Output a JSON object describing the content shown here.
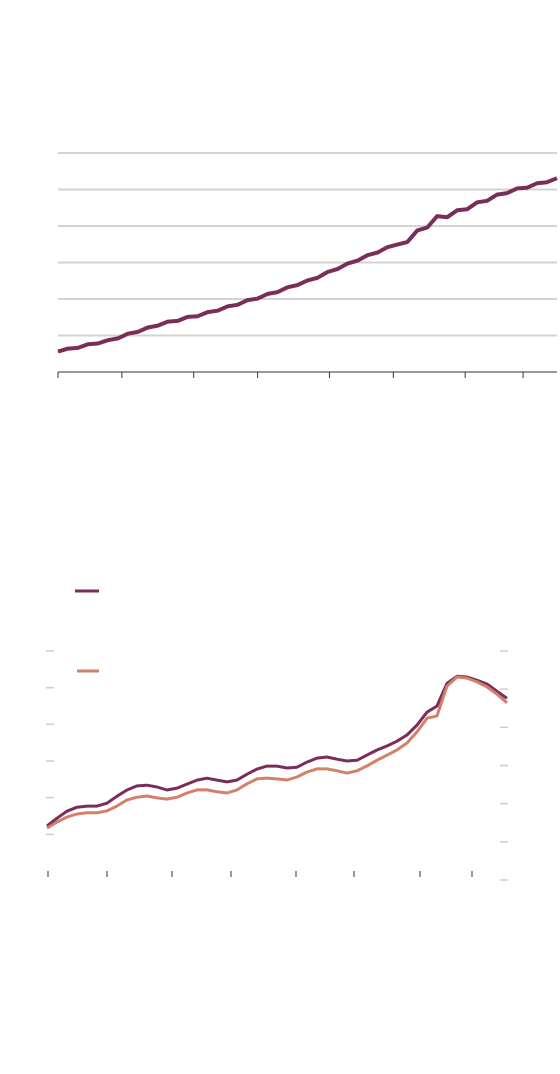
{
  "chart_data": [
    {
      "type": "line",
      "x": [
        0,
        10,
        20,
        30,
        40,
        50,
        60,
        70,
        80,
        90,
        100,
        110,
        120,
        130,
        140,
        150,
        160,
        170,
        180,
        190,
        200,
        210,
        220,
        230,
        240,
        250,
        260,
        270,
        280,
        290,
        300,
        310,
        320,
        330,
        340,
        350,
        360,
        370,
        380,
        390,
        400,
        410,
        420,
        430,
        440,
        450,
        460,
        470,
        480,
        490,
        500
      ],
      "series": [
        {
          "color": "#7b2d5a",
          "values": [
            0.56,
            0.64,
            0.66,
            0.76,
            0.78,
            0.87,
            0.92,
            1.05,
            1.1,
            1.22,
            1.27,
            1.38,
            1.4,
            1.51,
            1.53,
            1.64,
            1.68,
            1.8,
            1.84,
            1.97,
            2.01,
            2.14,
            2.19,
            2.32,
            2.38,
            2.51,
            2.58,
            2.74,
            2.82,
            2.97,
            3.05,
            3.2,
            3.27,
            3.42,
            3.49,
            3.56,
            3.88,
            3.96,
            4.27,
            4.24,
            4.43,
            4.46,
            4.65,
            4.69,
            4.86,
            4.9,
            5.03,
            5.05,
            5.17,
            5.2,
            5.31
          ]
        }
      ],
      "xlim": [
        0,
        500
      ],
      "xticks": [
        0,
        64,
        136,
        200,
        272,
        336,
        408,
        466
      ],
      "ylim": [
        0,
        6
      ],
      "yticks": [
        1,
        2,
        3,
        4,
        5,
        6
      ],
      "grid": true
    },
    {
      "type": "line",
      "x": [
        0,
        1,
        2,
        3,
        4,
        5,
        6,
        7,
        8,
        9,
        10,
        11,
        12,
        13,
        14,
        15,
        16,
        17,
        18,
        19,
        20,
        21,
        22,
        23,
        24,
        25,
        26,
        27,
        28,
        29,
        30,
        31,
        32,
        33,
        34,
        35,
        36,
        37,
        38,
        39,
        40,
        41,
        42,
        43,
        44,
        45,
        46
      ],
      "series": [
        {
          "color": "#7b2d5a",
          "axis": "y",
          "values": [
            1.23,
            1.44,
            1.63,
            1.74,
            1.77,
            1.77,
            1.85,
            2.04,
            2.21,
            2.32,
            2.34,
            2.29,
            2.21,
            2.26,
            2.37,
            2.48,
            2.53,
            2.48,
            2.43,
            2.48,
            2.64,
            2.78,
            2.86,
            2.86,
            2.81,
            2.83,
            2.97,
            3.08,
            3.11,
            3.05,
            3.0,
            3.02,
            3.16,
            3.3,
            3.41,
            3.54,
            3.71,
            3.98,
            4.33,
            4.5,
            5.12,
            5.31,
            5.29,
            5.2,
            5.1,
            4.9,
            4.71
          ]
        },
        {
          "color": "#d3806a",
          "axis": "y2",
          "values": [
            1.36,
            1.52,
            1.65,
            1.73,
            1.76,
            1.76,
            1.81,
            1.94,
            2.1,
            2.17,
            2.2,
            2.15,
            2.12,
            2.17,
            2.28,
            2.36,
            2.36,
            2.31,
            2.28,
            2.36,
            2.52,
            2.65,
            2.67,
            2.65,
            2.62,
            2.7,
            2.83,
            2.91,
            2.91,
            2.86,
            2.8,
            2.86,
            2.99,
            3.14,
            3.27,
            3.41,
            3.59,
            3.88,
            4.24,
            4.3,
            5.08,
            5.32,
            5.29,
            5.19,
            5.06,
            4.87,
            4.64
          ]
        }
      ],
      "xlim": [
        0,
        46
      ],
      "xticks": [
        0.1,
        6,
        12.5,
        18.4,
        24.9,
        30.7,
        37.3,
        42.5
      ],
      "ylim": [
        0,
        6
      ],
      "yticks": [
        1,
        2,
        3,
        4,
        5,
        6
      ],
      "y2lim": [
        0,
        6
      ],
      "y2ticks": [
        0,
        1,
        2,
        3,
        4,
        5,
        6
      ]
    }
  ]
}
